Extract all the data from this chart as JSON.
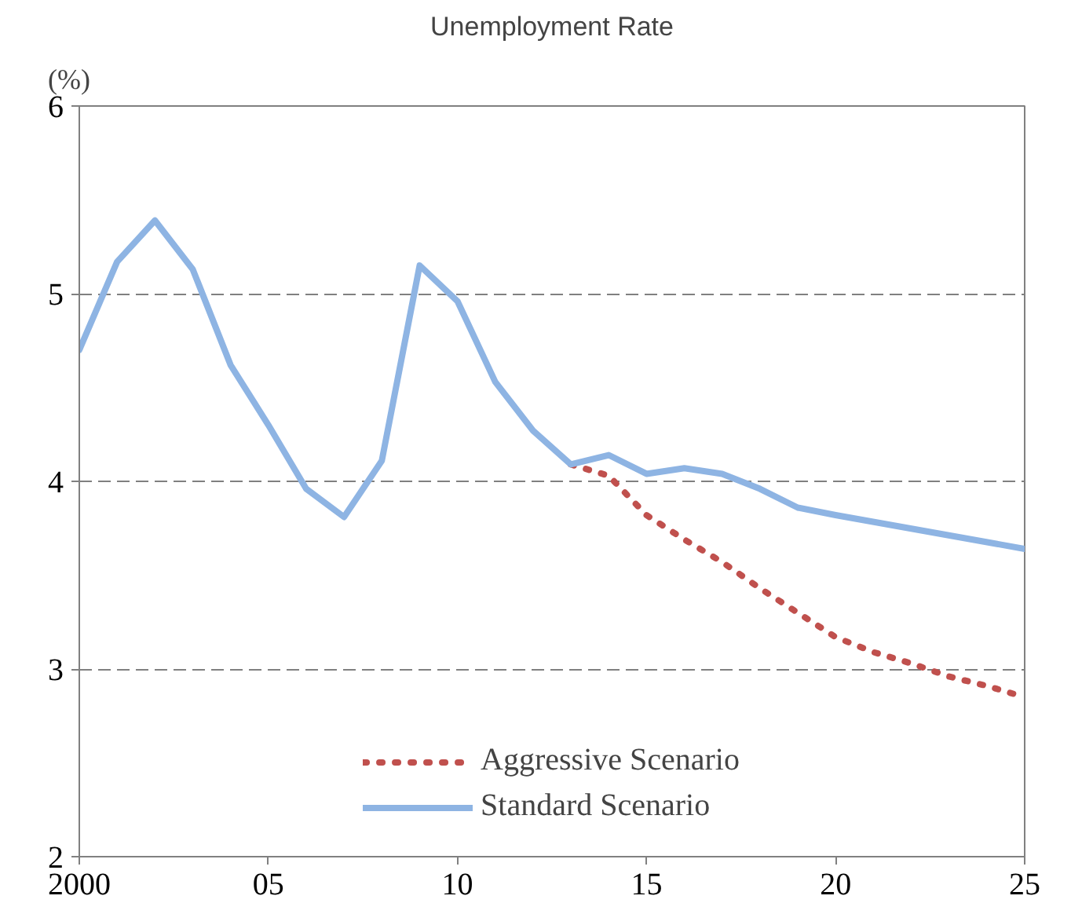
{
  "chart_data": {
    "type": "line",
    "title": "Unemployment Rate",
    "ylabel": "(%)",
    "xlim": [
      2000,
      2025
    ],
    "ylim": [
      2,
      6
    ],
    "xticks": [
      {
        "value": 2000,
        "label": "2000"
      },
      {
        "value": 2005,
        "label": "05"
      },
      {
        "value": 2010,
        "label": "10"
      },
      {
        "value": 2015,
        "label": "15"
      },
      {
        "value": 2020,
        "label": "20"
      },
      {
        "value": 2025,
        "label": "25"
      }
    ],
    "yticks": [
      2,
      3,
      4,
      5,
      6
    ],
    "grid": "y",
    "legend": "bottom",
    "series": [
      {
        "name": "Aggressive Scenario",
        "color": "#c0504d",
        "line_style": "dotted",
        "x": [
          2013,
          2014,
          2015,
          2016,
          2017,
          2018,
          2019,
          2020,
          2021,
          2022,
          2023,
          2024,
          2025
        ],
        "values": [
          4.09,
          4.03,
          3.82,
          3.69,
          3.57,
          3.43,
          3.3,
          3.17,
          3.09,
          3.03,
          2.96,
          2.91,
          2.85
        ]
      },
      {
        "name": "Standard Scenario",
        "color": "#8eb4e3",
        "line_style": "solid",
        "x": [
          2000,
          2001,
          2002,
          2003,
          2004,
          2005,
          2006,
          2007,
          2008,
          2009,
          2010,
          2011,
          2012,
          2013,
          2014,
          2015,
          2016,
          2017,
          2018,
          2019,
          2020,
          2025
        ],
        "values": [
          4.7,
          5.17,
          5.39,
          5.13,
          4.62,
          4.3,
          3.96,
          3.81,
          4.11,
          5.15,
          4.96,
          4.53,
          4.27,
          4.09,
          4.14,
          4.04,
          4.07,
          4.04,
          3.96,
          3.86,
          3.82,
          3.64
        ]
      }
    ]
  }
}
